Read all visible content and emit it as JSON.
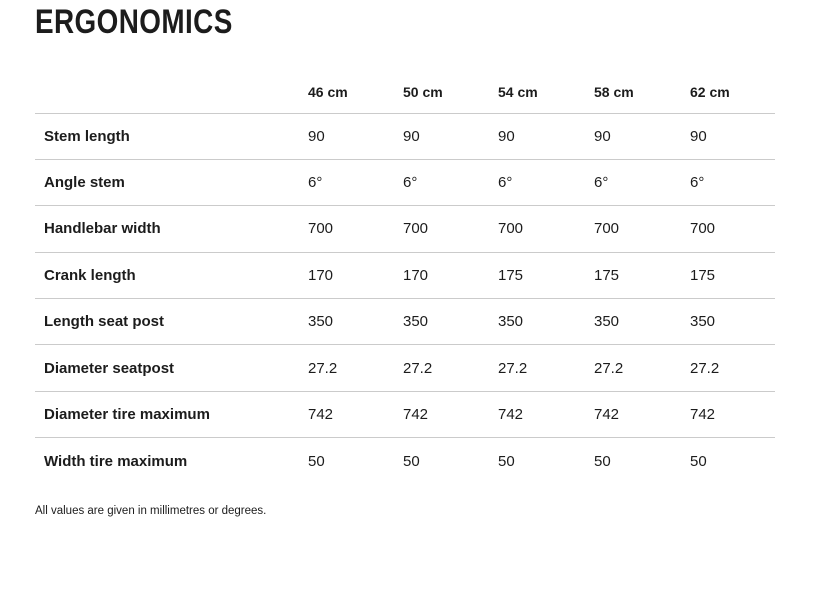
{
  "page": {
    "title": "ERGONOMICS",
    "footnote": "All values are given in millimetres or degrees."
  },
  "table": {
    "columns": [
      "46 cm",
      "50 cm",
      "54 cm",
      "58 cm",
      "62 cm"
    ],
    "rows": [
      {
        "label": "Stem length",
        "values": [
          "90",
          "90",
          "90",
          "90",
          "90"
        ]
      },
      {
        "label": "Angle stem",
        "values": [
          "6°",
          "6°",
          "6°",
          "6°",
          "6°"
        ]
      },
      {
        "label": "Handlebar width",
        "values": [
          "700",
          "700",
          "700",
          "700",
          "700"
        ]
      },
      {
        "label": "Crank length",
        "values": [
          "170",
          "170",
          "175",
          "175",
          "175"
        ]
      },
      {
        "label": "Length seat post",
        "values": [
          "350",
          "350",
          "350",
          "350",
          "350"
        ]
      },
      {
        "label": "Diameter seatpost",
        "values": [
          "27.2",
          "27.2",
          "27.2",
          "27.2",
          "27.2"
        ]
      },
      {
        "label": "Diameter tire maximum",
        "values": [
          "742",
          "742",
          "742",
          "742",
          "742"
        ]
      },
      {
        "label": "Width tire maximum",
        "values": [
          "50",
          "50",
          "50",
          "50",
          "50"
        ]
      }
    ]
  },
  "colors": {
    "text": "#1c1c1c",
    "divider": "#cbcbcb",
    "background": "#ffffff"
  }
}
